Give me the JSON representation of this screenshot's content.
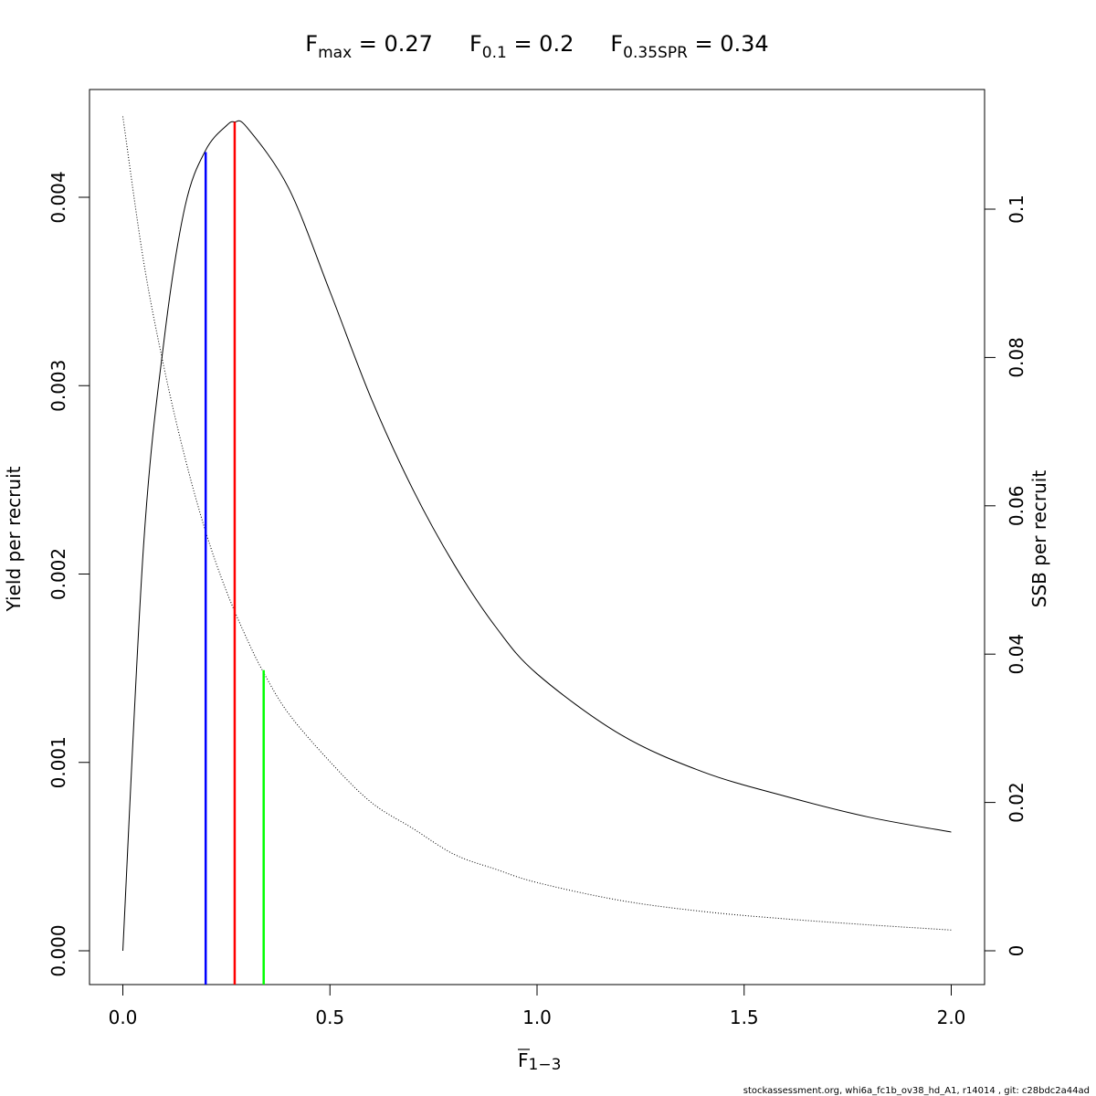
{
  "title_parts": {
    "fmax_base": "F",
    "fmax_sub": "max",
    "fmax_val": " = 0.27",
    "f01_base": "F",
    "f01_sub": "0.1",
    "f01_val": " = 0.2",
    "fspr_base": "F",
    "fspr_sub": "0.35SPR",
    "fspr_val": " = 0.34"
  },
  "xlabel": {
    "base": "F",
    "sub": "1−3"
  },
  "ylabel_left": "Yield per recruit",
  "ylabel_right": "SSB per recruit",
  "footer": "stockassessment.org, whi6a_fc1b_ov38_hd_A1, r14014 , git: c28bdc2a44ad",
  "colors": {
    "fmax": "#ff0000",
    "f01": "#0000ff",
    "fspr": "#00ff00",
    "curve": "#000000"
  },
  "chart_data": {
    "type": "line",
    "x_ticks": [
      "0.0",
      "0.5",
      "1.0",
      "1.5",
      "2.0"
    ],
    "y_left_ticks": [
      "0.000",
      "0.001",
      "0.002",
      "0.003",
      "0.004"
    ],
    "y_right_ticks": [
      "0",
      "0.02",
      "0.04",
      "0.06",
      "0.08",
      "0.1"
    ],
    "xlim": [
      0,
      2
    ],
    "ylim_left": [
      0,
      0.0044
    ],
    "ylim_right": [
      0,
      0.1125
    ],
    "series": [
      {
        "axis": "left",
        "style": "solid",
        "x": [
          0,
          0.05,
          0.1,
          0.15,
          0.2,
          0.25,
          0.27,
          0.3,
          0.4,
          0.5,
          0.6,
          0.7,
          0.8,
          0.9,
          1.0,
          1.2,
          1.4,
          1.6,
          1.8,
          2.0
        ],
        "y": [
          0,
          0.00215,
          0.00325,
          0.00395,
          0.00425,
          0.00438,
          0.0044,
          0.00437,
          0.00405,
          0.0035,
          0.00293,
          0.00245,
          0.00205,
          0.00172,
          0.00147,
          0.00115,
          0.00095,
          0.00082,
          0.00071,
          0.00063
        ]
      },
      {
        "axis": "right",
        "style": "dotted",
        "x": [
          0,
          0.05,
          0.1,
          0.15,
          0.2,
          0.25,
          0.3,
          0.34,
          0.4,
          0.5,
          0.6,
          0.7,
          0.8,
          0.9,
          1.0,
          1.2,
          1.4,
          1.6,
          1.8,
          2.0
        ],
        "y": [
          0.1125,
          0.093,
          0.0785,
          0.0665,
          0.0565,
          0.0485,
          0.042,
          0.0375,
          0.032,
          0.0255,
          0.02,
          0.0165,
          0.013,
          0.011,
          0.0092,
          0.0068,
          0.0053,
          0.0043,
          0.0035,
          0.0028
        ]
      }
    ],
    "reference_lines": [
      {
        "key": "f01",
        "x": 0.2,
        "y": 0.00424,
        "axis": "left"
      },
      {
        "key": "fmax",
        "x": 0.27,
        "y": 0.0044,
        "axis": "left"
      },
      {
        "key": "fspr",
        "x": 0.34,
        "y": 0.00149,
        "axis": "left"
      }
    ]
  }
}
